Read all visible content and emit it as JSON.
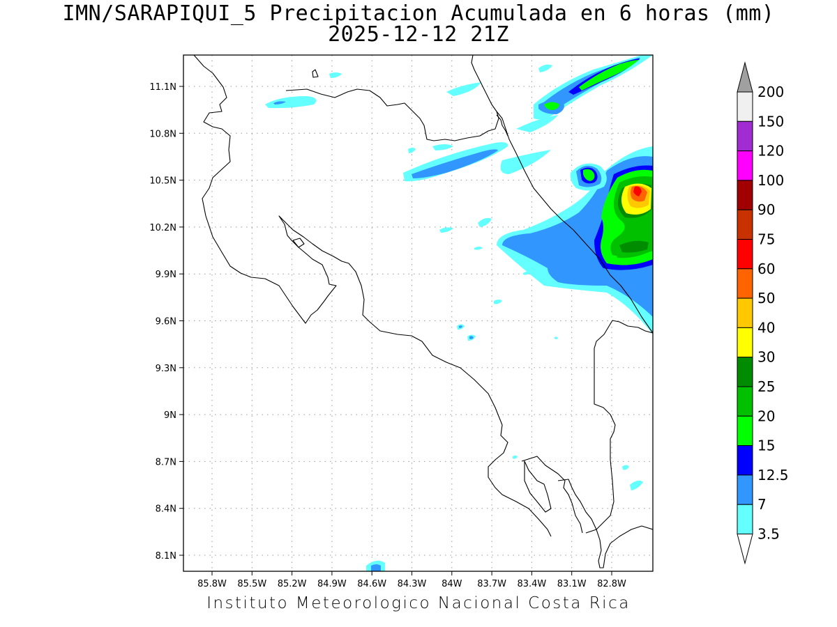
{
  "title_line1": "IMN/SARAPIQUI_5 Precipitacion Acumulada en 6 horas (mm)",
  "title_line2": "2025-12-12 21Z",
  "footer": "Instituto Meteorologico Nacional Costa Rica",
  "map": {
    "lon_range": [
      -86.1,
      -82.4
    ],
    "lat_range": [
      8.0,
      11.3
    ],
    "lon_ticks": [
      "85.8W",
      "85.5W",
      "85.2W",
      "84.9W",
      "84.6W",
      "84.3W",
      "84W",
      "83.7W",
      "83.4W",
      "83.1W",
      "82.8W"
    ],
    "lat_ticks": [
      "11.1N",
      "10.8N",
      "10.5N",
      "10.2N",
      "9.9N",
      "9.6N",
      "9.3N",
      "9N",
      "8.7N",
      "8.4N",
      "8.1N"
    ],
    "grid": "dotted"
  },
  "colorbar": {
    "labels": [
      "200",
      "150",
      "120",
      "100",
      "90",
      "75",
      "60",
      "50",
      "40",
      "30",
      "25",
      "20",
      "15",
      "12.5",
      "7",
      "3.5"
    ],
    "colors": [
      "#f0f0f0",
      "#a02cd2",
      "#ff00ff",
      "#a00000",
      "#c83200",
      "#ff0000",
      "#ff6400",
      "#ffc800",
      "#ffff00",
      "#008c00",
      "#00c000",
      "#00ff00",
      "#0000ff",
      "#3296ff",
      "#64ffff"
    ],
    "max_arrow_color": "#a0a0a0",
    "min_arrow_color": "#ffffff"
  }
}
